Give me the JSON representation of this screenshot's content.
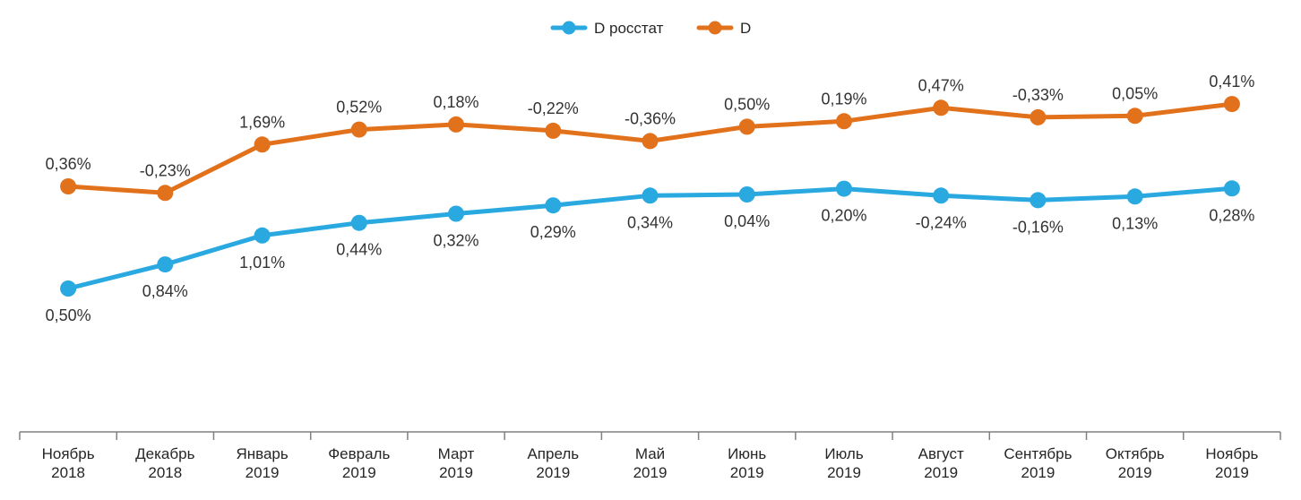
{
  "chart_data": {
    "type": "line",
    "title": "",
    "legend_position": "top-center",
    "grid": false,
    "value_suffix": "%",
    "decimal_separator": ",",
    "categories": [
      {
        "month": "Ноябрь",
        "year": "2018"
      },
      {
        "month": "Декабрь",
        "year": "2018"
      },
      {
        "month": "Январь",
        "year": "2019"
      },
      {
        "month": "Февраль",
        "year": "2019"
      },
      {
        "month": "Март",
        "year": "2019"
      },
      {
        "month": "Апрель",
        "year": "2019"
      },
      {
        "month": "Май",
        "year": "2019"
      },
      {
        "month": "Июнь",
        "year": "2019"
      },
      {
        "month": "Июль",
        "year": "2019"
      },
      {
        "month": "Август",
        "year": "2019"
      },
      {
        "month": "Сентябрь",
        "year": "2019"
      },
      {
        "month": "Октябрь",
        "year": "2019"
      },
      {
        "month": "Ноябрь",
        "year": "2019"
      }
    ],
    "series": [
      {
        "name": "D росстат",
        "color": "#29A9E0",
        "label_position": "below",
        "values": [
          0.5,
          0.84,
          1.01,
          0.44,
          0.32,
          0.29,
          0.34,
          0.04,
          0.2,
          -0.24,
          -0.16,
          0.13,
          0.28
        ],
        "labels": [
          "0,50%",
          "0,84%",
          "1,01%",
          "0,44%",
          "0,32%",
          "0,29%",
          "0,34%",
          "0,04%",
          "0,20%",
          "-0,24%",
          "-0,16%",
          "0,13%",
          "0,28%"
        ]
      },
      {
        "name": "D",
        "color": "#E2711C",
        "label_position": "above",
        "values": [
          0.36,
          -0.23,
          1.69,
          0.52,
          0.18,
          -0.22,
          -0.36,
          0.5,
          0.19,
          0.47,
          -0.33,
          0.05,
          0.41
        ],
        "labels": [
          "0,36%",
          "-0,23%",
          "1,69%",
          "0,52%",
          "0,18%",
          "-0,22%",
          "-0,36%",
          "0,50%",
          "0,19%",
          "0,47%",
          "-0,33%",
          "0,05%",
          "0,41%"
        ]
      }
    ]
  },
  "colors": {
    "background": "#ffffff",
    "data_label_text": "#333333",
    "axis_line": "#808080",
    "axis_text": "#262626"
  }
}
